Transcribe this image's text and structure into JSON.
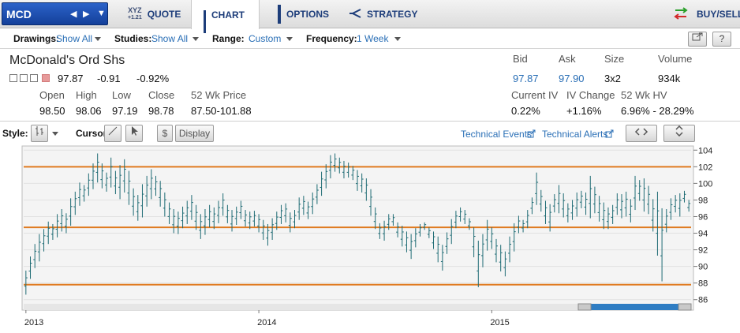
{
  "nav": {
    "symbol": "MCD",
    "tabs": [
      {
        "label": "QUOTE",
        "icon": "xyz-quote-icon",
        "badge_top": "XYZ",
        "badge_bottom": "+1.21"
      },
      {
        "label": "CHART",
        "icon": "bar-chart-icon"
      },
      {
        "label": "OPTIONS",
        "icon": "options-icon"
      },
      {
        "label": "STRATEGY",
        "icon": "strategy-icon"
      }
    ],
    "buy_sell": "BUY/SELL"
  },
  "toolbar": {
    "drawings_label": "Drawings:",
    "drawings_value": "Show All",
    "studies_label": "Studies:",
    "studies_value": "Show All",
    "range_label": "Range:",
    "range_value": "Custom",
    "frequency_label": "Frequency:",
    "frequency_value": "1 Week",
    "help_label": "?"
  },
  "quote": {
    "name": "McDonald's Ord Shs",
    "last": "97.87",
    "change": "-0.91",
    "change_pct": "-0.92%",
    "labels": {
      "open": "Open",
      "high": "High",
      "low": "Low",
      "close": "Close",
      "wk52": "52 Wk Price",
      "bid": "Bid",
      "ask": "Ask",
      "size": "Size",
      "volume": "Volume",
      "civ": "Current IV",
      "ivchg": "IV Change",
      "hv": "52 Wk HV"
    },
    "open": "98.50",
    "high": "98.06",
    "low": "97.19",
    "close": "98.78",
    "wk52": "87.50-101.88",
    "bid": "97.87",
    "ask": "97.90",
    "size": "3x2",
    "volume": "934k",
    "civ": "0.22%",
    "ivchg": "+1.16%",
    "hv": "6.96% - 28.29%"
  },
  "chart_tools": {
    "style_label": "Style:",
    "cursor_label": "Cursor:",
    "dollar": "$",
    "display": "Display",
    "tech_events": "Technical Events",
    "tech_alerts": "Technical Alerts"
  },
  "colors": {
    "accent": "#2a6fb6",
    "bars": "#1e6b74",
    "lines": "#e07a1f",
    "nav_text": "#1d3d7a"
  },
  "chart_data": {
    "type": "ohlc",
    "frequency": "1 Week",
    "x_ticks": [
      "2013",
      "2014",
      "2015"
    ],
    "x_tick_positions": [
      0,
      52,
      104
    ],
    "y_ticks": [
      104,
      102,
      100,
      98,
      96,
      94,
      92,
      90,
      88,
      86
    ],
    "ylim": [
      85.5,
      104.5
    ],
    "grid": true,
    "support_resistance_lines": [
      102.0,
      94.7,
      87.8
    ],
    "series": [
      {
        "bars": [
          [
            86.6,
            89.5
          ],
          [
            88.5,
            91.2
          ],
          [
            89.8,
            92.7
          ],
          [
            90.6,
            93.9
          ],
          [
            91.8,
            94.5
          ],
          [
            92.7,
            95.4
          ],
          [
            93.2,
            95.1
          ],
          [
            93.5,
            96.3
          ],
          [
            94.2,
            96.9
          ],
          [
            94.0,
            96.4
          ],
          [
            94.9,
            98.2
          ],
          [
            96.2,
            99.0
          ],
          [
            97.3,
            100.1
          ],
          [
            97.8,
            99.8
          ],
          [
            98.5,
            101.2
          ],
          [
            99.3,
            102.4
          ],
          [
            100.1,
            103.6
          ],
          [
            99.4,
            102.4
          ],
          [
            99.0,
            101.3
          ],
          [
            99.5,
            103.1
          ],
          [
            98.7,
            101.5
          ],
          [
            98.1,
            102.2
          ],
          [
            98.9,
            102.9
          ],
          [
            97.4,
            101.5
          ],
          [
            96.1,
            99.4
          ],
          [
            95.5,
            98.6
          ],
          [
            95.9,
            99.9
          ],
          [
            97.2,
            100.9
          ],
          [
            98.1,
            101.7
          ],
          [
            98.5,
            100.9
          ],
          [
            97.2,
            100.3
          ],
          [
            96.0,
            98.9
          ],
          [
            95.1,
            97.7
          ],
          [
            94.0,
            96.9
          ],
          [
            93.9,
            96.6
          ],
          [
            94.6,
            97.2
          ],
          [
            95.1,
            97.9
          ],
          [
            95.6,
            98.6
          ],
          [
            94.4,
            97.4
          ],
          [
            93.3,
            96.3
          ],
          [
            93.8,
            96.9
          ],
          [
            94.7,
            97.4
          ],
          [
            94.5,
            97.1
          ],
          [
            95.2,
            97.9
          ],
          [
            96.1,
            98.8
          ],
          [
            95.2,
            97.4
          ],
          [
            94.2,
            96.8
          ],
          [
            95.0,
            97.2
          ],
          [
            95.7,
            97.9
          ],
          [
            94.8,
            96.8
          ],
          [
            94.5,
            96.6
          ],
          [
            94.8,
            96.7
          ],
          [
            94.1,
            96.3
          ],
          [
            93.2,
            95.6
          ],
          [
            92.5,
            95.1
          ],
          [
            93.2,
            95.8
          ],
          [
            94.4,
            96.6
          ],
          [
            95.1,
            97.4
          ],
          [
            95.3,
            97.6
          ],
          [
            94.1,
            96.5
          ],
          [
            94.6,
            96.8
          ],
          [
            95.6,
            98.3
          ],
          [
            96.2,
            98.5
          ],
          [
            95.7,
            97.8
          ],
          [
            96.3,
            98.9
          ],
          [
            97.5,
            99.9
          ],
          [
            98.5,
            101.4
          ],
          [
            99.4,
            102.3
          ],
          [
            100.6,
            103.4
          ],
          [
            101.4,
            103.6
          ],
          [
            101.2,
            103.1
          ],
          [
            100.6,
            102.7
          ],
          [
            100.7,
            102.5
          ],
          [
            100.4,
            102.1
          ],
          [
            99.1,
            101.6
          ],
          [
            98.9,
            101.2
          ],
          [
            97.9,
            100.6
          ],
          [
            96.1,
            99.3
          ],
          [
            94.5,
            97.1
          ],
          [
            93.3,
            95.2
          ],
          [
            93.1,
            95.5
          ],
          [
            94.4,
            96.3
          ],
          [
            94.9,
            96.3
          ],
          [
            93.5,
            95.3
          ],
          [
            92.4,
            94.9
          ],
          [
            91.7,
            94.2
          ],
          [
            90.9,
            93.9
          ],
          [
            92.3,
            94.6
          ],
          [
            93.6,
            95.1
          ],
          [
            94.4,
            95.3
          ],
          [
            93.4,
            94.7
          ],
          [
            92.1,
            94.2
          ],
          [
            90.5,
            93.6
          ],
          [
            89.5,
            92.6
          ],
          [
            91.5,
            94.1
          ],
          [
            92.7,
            95.7
          ],
          [
            94.6,
            96.7
          ],
          [
            95.4,
            97.1
          ],
          [
            95.1,
            96.8
          ],
          [
            94.4,
            95.8
          ],
          [
            91.1,
            94.7
          ],
          [
            87.5,
            93.1
          ],
          [
            89.9,
            93.9
          ],
          [
            91.9,
            95.6
          ],
          [
            92.1,
            94.7
          ],
          [
            90.5,
            93.3
          ],
          [
            89.4,
            92.6
          ],
          [
            88.8,
            91.8
          ],
          [
            90.5,
            93.6
          ],
          [
            91.8,
            95.2
          ],
          [
            94.0,
            96.1
          ],
          [
            94.1,
            95.6
          ],
          [
            94.6,
            96.8
          ],
          [
            96.3,
            98.3
          ],
          [
            97.4,
            101.3
          ],
          [
            96.6,
            99.2
          ],
          [
            95.1,
            97.9
          ],
          [
            94.2,
            97.5
          ],
          [
            96.5,
            98.7
          ],
          [
            96.4,
            99.8
          ],
          [
            95.9,
            98.8
          ],
          [
            95.3,
            97.6
          ],
          [
            95.6,
            98.0
          ],
          [
            96.0,
            98.9
          ],
          [
            97.0,
            99.1
          ],
          [
            96.2,
            98.9
          ],
          [
            95.8,
            100.9
          ],
          [
            96.4,
            99.6
          ],
          [
            95.4,
            98.5
          ],
          [
            94.5,
            97.7
          ],
          [
            94.5,
            97.1
          ],
          [
            95.1,
            97.4
          ],
          [
            96.2,
            98.8
          ],
          [
            95.8,
            98.7
          ],
          [
            96.0,
            99.0
          ],
          [
            95.3,
            98.1
          ],
          [
            96.8,
            100.9
          ],
          [
            97.9,
            100.4
          ],
          [
            96.6,
            100.6
          ],
          [
            96.3,
            99.7
          ],
          [
            94.2,
            98.1
          ],
          [
            91.3,
            99.0
          ],
          [
            88.2,
            97.0
          ],
          [
            94.1,
            96.9
          ],
          [
            95.6,
            98.2
          ],
          [
            96.5,
            98.6
          ],
          [
            96.0,
            98.8
          ],
          [
            97.7,
            99.1
          ],
          [
            96.6,
            98.0
          ]
        ]
      }
    ]
  }
}
